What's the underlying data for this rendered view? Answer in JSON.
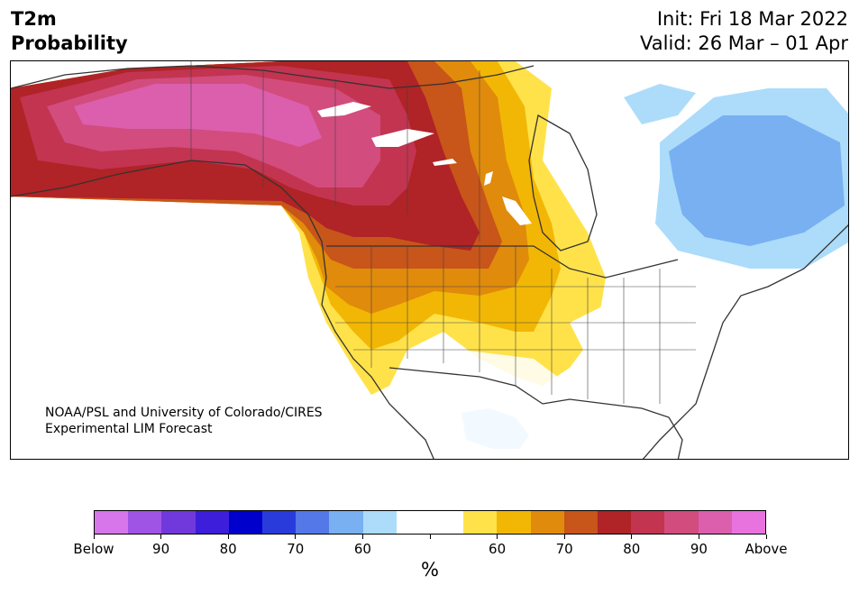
{
  "title": {
    "left_line1": "T2m",
    "left_line2": "Probability",
    "right_line1": "Init: Fri 18 Mar 2022",
    "right_line2": "Valid: 26 Mar – 01 Apr"
  },
  "credit": {
    "line1": "NOAA/PSL and University of Colorado/CIRES",
    "line2": "Experimental LIM Forecast"
  },
  "colorbar": {
    "colors": [
      "#d676ea",
      "#a054e6",
      "#7139db",
      "#3c1edb",
      "#0000cc",
      "#2a3bdb",
      "#5478e8",
      "#78b0f2",
      "#acdcfa",
      "#ffffff",
      "#ffffff",
      "#ffe24a",
      "#f2b705",
      "#e08b0b",
      "#c8551a",
      "#b02326",
      "#c23450",
      "#d24c7e",
      "#db5fac",
      "#e873de"
    ],
    "tick_labels": [
      "Below",
      "90",
      "80",
      "70",
      "60",
      "",
      "60",
      "70",
      "80",
      "90",
      "Above"
    ],
    "unit": "%"
  },
  "map": {
    "land_outline_color": "#333333",
    "ocean_color": "#ffffff"
  }
}
